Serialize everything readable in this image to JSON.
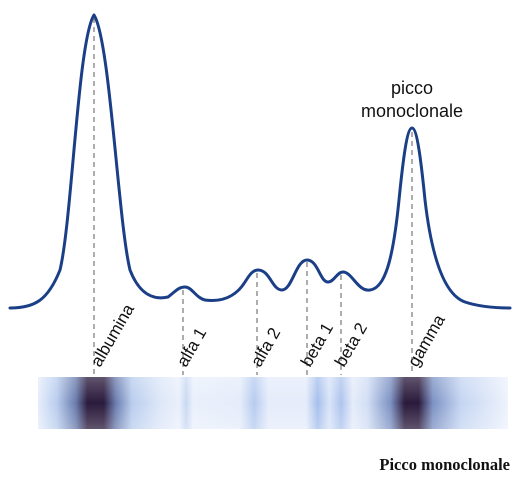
{
  "annotation": [
    "picco",
    "monoclonale"
  ],
  "caption": "Picco monoclonale",
  "fractions": [
    {
      "key": "albumina",
      "label": "albumina"
    },
    {
      "key": "alfa1",
      "label": "alfa 1"
    },
    {
      "key": "alfa2",
      "label": "alfa 2"
    },
    {
      "key": "beta1",
      "label": "beta 1"
    },
    {
      "key": "beta2",
      "label": "beta 2"
    },
    {
      "key": "gamma",
      "label": "gamma"
    }
  ],
  "colors": {
    "curve": "#1b3f87",
    "guide_line": "#777777",
    "band_light": "#e9f0fb",
    "band_dark": "#2a1a3c"
  }
}
